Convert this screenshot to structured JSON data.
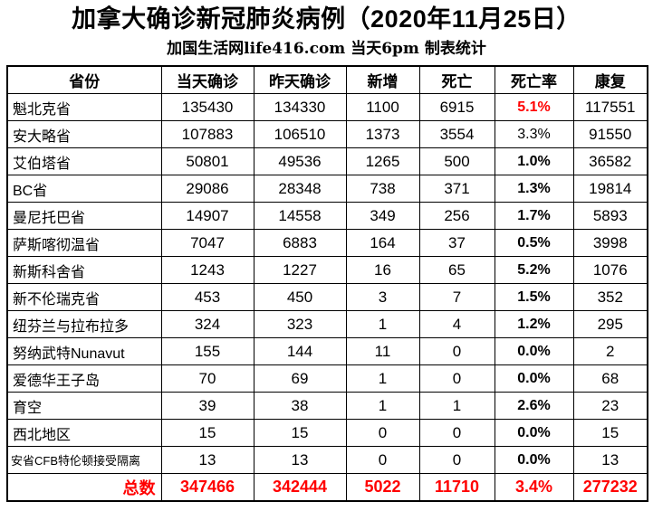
{
  "title": "加拿大确诊新冠肺炎病例（2020年11月25日）",
  "subtitle": "加国生活网life416.com 当天6pm 制表统计",
  "colors": {
    "accent_red": "#FF0000",
    "border": "#000000",
    "background": "#FFFFFF"
  },
  "chart_data": {
    "type": "table",
    "title": "加拿大确诊新冠肺炎病例（2020年11月25日）",
    "subtitle": "加国生活网life416.com 当天6pm 制表统计",
    "columns": [
      "省份",
      "当天确诊",
      "昨天确诊",
      "新增",
      "死亡",
      "死亡率",
      "康复"
    ],
    "column_keys": [
      "province",
      "today",
      "yesterday",
      "new",
      "deaths",
      "death_rate",
      "recovered"
    ],
    "rows": [
      {
        "province": "魁北克省",
        "today": "135430",
        "yesterday": "134330",
        "new": "1100",
        "deaths": "6915",
        "death_rate": "5.1%",
        "recovered": "117551",
        "rate_red": true,
        "rate_bold": true
      },
      {
        "province": "安大略省",
        "today": "107883",
        "yesterday": "106510",
        "new": "1373",
        "deaths": "3554",
        "death_rate": "3.3%",
        "recovered": "91550",
        "rate_red": false,
        "rate_bold": false
      },
      {
        "province": "艾伯塔省",
        "today": "50801",
        "yesterday": "49536",
        "new": "1265",
        "deaths": "500",
        "death_rate": "1.0%",
        "recovered": "36582",
        "rate_red": false,
        "rate_bold": true
      },
      {
        "province": "BC省",
        "today": "29086",
        "yesterday": "28348",
        "new": "738",
        "deaths": "371",
        "death_rate": "1.3%",
        "recovered": "19814",
        "rate_red": false,
        "rate_bold": true
      },
      {
        "province": "曼尼托巴省",
        "today": "14907",
        "yesterday": "14558",
        "new": "349",
        "deaths": "256",
        "death_rate": "1.7%",
        "recovered": "5893",
        "rate_red": false,
        "rate_bold": true
      },
      {
        "province": "萨斯喀彻温省",
        "today": "7047",
        "yesterday": "6883",
        "new": "164",
        "deaths": "37",
        "death_rate": "0.5%",
        "recovered": "3998",
        "rate_red": false,
        "rate_bold": true
      },
      {
        "province": "新斯科舍省",
        "today": "1243",
        "yesterday": "1227",
        "new": "16",
        "deaths": "65",
        "death_rate": "5.2%",
        "recovered": "1076",
        "rate_red": false,
        "rate_bold": true
      },
      {
        "province": "新不伦瑞克省",
        "today": "453",
        "yesterday": "450",
        "new": "3",
        "deaths": "7",
        "death_rate": "1.5%",
        "recovered": "352",
        "rate_red": false,
        "rate_bold": true
      },
      {
        "province": "纽芬兰与拉布拉多",
        "today": "324",
        "yesterday": "323",
        "new": "1",
        "deaths": "4",
        "death_rate": "1.2%",
        "recovered": "295",
        "rate_red": false,
        "rate_bold": true
      },
      {
        "province": "努纳武特Nunavut",
        "today": "155",
        "yesterday": "144",
        "new": "11",
        "deaths": "0",
        "death_rate": "0.0%",
        "recovered": "2",
        "rate_red": false,
        "rate_bold": true
      },
      {
        "province": "爱德华王子岛",
        "today": "70",
        "yesterday": "69",
        "new": "1",
        "deaths": "0",
        "death_rate": "0.0%",
        "recovered": "68",
        "rate_red": false,
        "rate_bold": true
      },
      {
        "province": "育空",
        "today": "39",
        "yesterday": "38",
        "new": "1",
        "deaths": "1",
        "death_rate": "2.6%",
        "recovered": "23",
        "rate_red": false,
        "rate_bold": true
      },
      {
        "province": "西北地区",
        "today": "15",
        "yesterday": "15",
        "new": "0",
        "deaths": "0",
        "death_rate": "0.0%",
        "recovered": "15",
        "rate_red": false,
        "rate_bold": true
      },
      {
        "province": "安省CFB特伦顿接受隔离",
        "today": "13",
        "yesterday": "13",
        "new": "0",
        "deaths": "0",
        "death_rate": "0.0%",
        "recovered": "13",
        "rate_red": false,
        "rate_bold": true,
        "small_label": true
      }
    ],
    "total": {
      "province": "总数",
      "today": "347466",
      "yesterday": "342444",
      "new": "5022",
      "deaths": "11710",
      "death_rate": "3.4%",
      "recovered": "277232"
    }
  }
}
